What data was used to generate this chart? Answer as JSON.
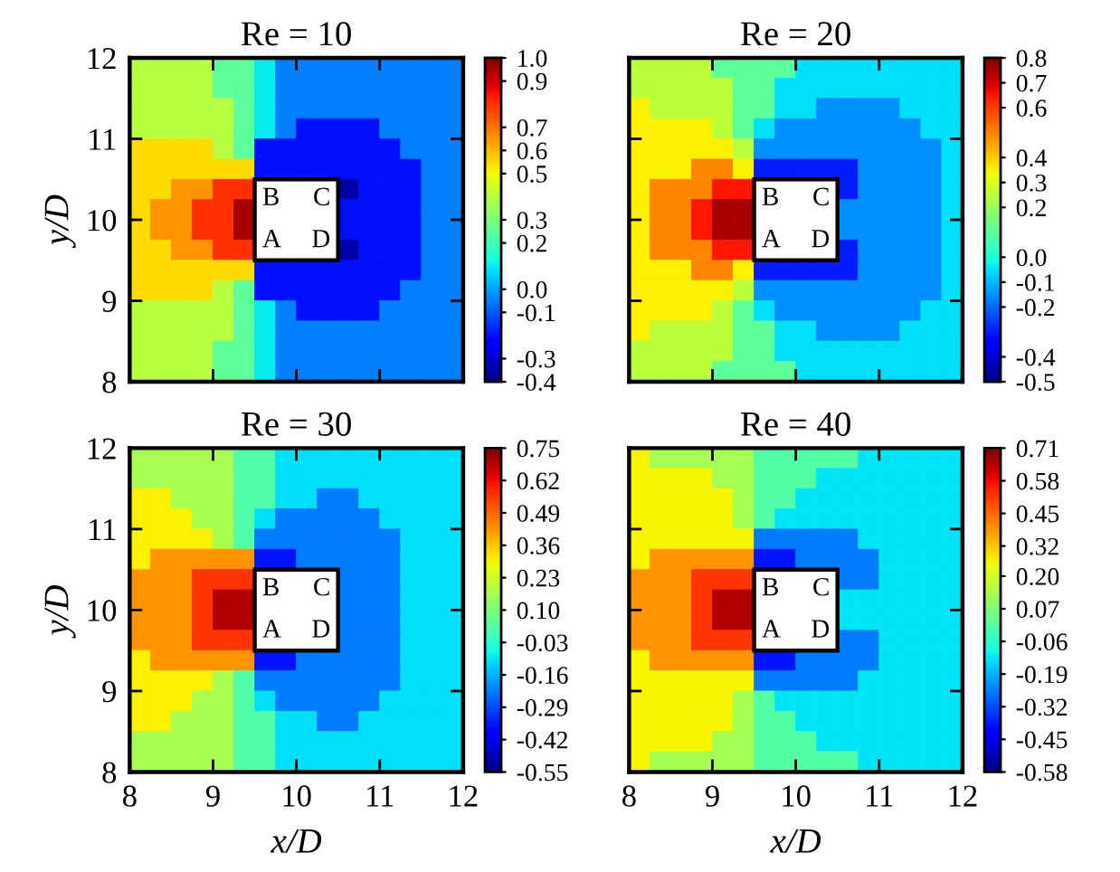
{
  "chart_data": [
    {
      "type": "heatmap",
      "title": "Re = 10",
      "ylabel": "y/D",
      "xlim": [
        8,
        12
      ],
      "ylim": [
        8,
        12
      ],
      "xticks": [
        8,
        9,
        10,
        11,
        12
      ],
      "yticks": [
        8,
        9,
        10,
        11,
        12
      ],
      "tick_labels": "y",
      "clim": [
        -0.4,
        1.0
      ],
      "cticks": [
        {
          "value": -0.4,
          "label": "-0.4"
        },
        {
          "value": -0.3,
          "label": "-0.3"
        },
        {
          "value": -0.1,
          "label": "-0.1"
        },
        {
          "value": 0,
          "label": "0.0"
        },
        {
          "value": 0.2,
          "label": "0.2"
        },
        {
          "value": 0.3,
          "label": "0.3"
        },
        {
          "value": 0.5,
          "label": "0.5"
        },
        {
          "value": 0.6,
          "label": "0.6"
        },
        {
          "value": 0.7,
          "label": "0.7"
        },
        {
          "value": 0.9,
          "label": "0.9"
        },
        {
          "value": 1.0,
          "label": "1.0"
        }
      ],
      "annotations": [
        "B",
        "C",
        "A",
        "D"
      ],
      "cells": [
        [
          0.4,
          0.4,
          0.4,
          0.4,
          0.25,
          0.25,
          0.1,
          -0.05,
          -0.05,
          -0.05,
          -0.05,
          -0.05,
          -0.05,
          -0.05,
          -0.05,
          -0.05
        ],
        [
          0.4,
          0.4,
          0.4,
          0.4,
          0.25,
          0.25,
          0.1,
          -0.05,
          -0.05,
          -0.05,
          -0.05,
          -0.05,
          -0.05,
          -0.05,
          -0.05,
          -0.05
        ],
        [
          0.4,
          0.4,
          0.4,
          0.4,
          0.4,
          0.25,
          0.1,
          -0.05,
          -0.05,
          -0.05,
          -0.05,
          -0.05,
          -0.05,
          -0.05,
          -0.05,
          -0.05
        ],
        [
          0.4,
          0.4,
          0.4,
          0.4,
          0.4,
          0.25,
          0.1,
          -0.05,
          -0.2,
          -0.2,
          -0.2,
          -0.2,
          -0.05,
          -0.05,
          -0.05,
          -0.05
        ],
        [
          0.55,
          0.55,
          0.55,
          0.55,
          0.4,
          0.25,
          -0.2,
          -0.2,
          -0.2,
          -0.2,
          -0.2,
          -0.2,
          -0.2,
          -0.05,
          -0.05,
          -0.05
        ],
        [
          0.55,
          0.55,
          0.55,
          0.55,
          0.55,
          0.55,
          -0.2,
          -0.2,
          -0.2,
          -0.2,
          -0.2,
          -0.2,
          -0.2,
          -0.2,
          -0.05,
          -0.05
        ],
        [
          0.55,
          0.55,
          0.65,
          0.65,
          0.8,
          0.8,
          null,
          null,
          null,
          null,
          -0.35,
          -0.2,
          -0.2,
          -0.2,
          -0.05,
          -0.05
        ],
        [
          0.55,
          0.65,
          0.65,
          0.8,
          0.8,
          0.95,
          null,
          null,
          null,
          null,
          -0.2,
          -0.2,
          -0.2,
          -0.2,
          -0.05,
          -0.05
        ],
        [
          0.55,
          0.65,
          0.65,
          0.8,
          0.8,
          0.95,
          null,
          null,
          null,
          null,
          -0.2,
          -0.2,
          -0.2,
          -0.2,
          -0.05,
          -0.05
        ],
        [
          0.55,
          0.55,
          0.65,
          0.65,
          0.8,
          0.8,
          null,
          null,
          null,
          null,
          -0.35,
          -0.2,
          -0.2,
          -0.2,
          -0.05,
          -0.05
        ],
        [
          0.55,
          0.55,
          0.55,
          0.55,
          0.55,
          0.55,
          -0.2,
          -0.2,
          -0.2,
          -0.2,
          -0.2,
          -0.2,
          -0.2,
          -0.2,
          -0.05,
          -0.05
        ],
        [
          0.55,
          0.55,
          0.55,
          0.55,
          0.4,
          0.25,
          -0.2,
          -0.2,
          -0.2,
          -0.2,
          -0.2,
          -0.2,
          -0.2,
          -0.05,
          -0.05,
          -0.05
        ],
        [
          0.4,
          0.4,
          0.4,
          0.4,
          0.4,
          0.25,
          0.1,
          -0.05,
          -0.2,
          -0.2,
          -0.2,
          -0.2,
          -0.05,
          -0.05,
          -0.05,
          -0.05
        ],
        [
          0.4,
          0.4,
          0.4,
          0.4,
          0.4,
          0.25,
          0.1,
          -0.05,
          -0.05,
          -0.05,
          -0.05,
          -0.05,
          -0.05,
          -0.05,
          -0.05,
          -0.05
        ],
        [
          0.4,
          0.4,
          0.4,
          0.4,
          0.25,
          0.25,
          0.1,
          -0.05,
          -0.05,
          -0.05,
          -0.05,
          -0.05,
          -0.05,
          -0.05,
          -0.05,
          -0.05
        ],
        [
          0.4,
          0.4,
          0.4,
          0.4,
          0.25,
          0.25,
          0.1,
          -0.05,
          -0.05,
          -0.05,
          -0.05,
          -0.05,
          -0.05,
          -0.05,
          -0.05,
          -0.05
        ]
      ]
    },
    {
      "type": "heatmap",
      "title": "Re = 20",
      "xlim": [
        8,
        12
      ],
      "ylim": [
        8,
        12
      ],
      "xticks": [
        8,
        9,
        10,
        11,
        12
      ],
      "yticks": [
        8,
        9,
        10,
        11,
        12
      ],
      "tick_labels": false,
      "clim": [
        -0.5,
        0.8
      ],
      "cticks": [
        {
          "value": -0.5,
          "label": "-0.5"
        },
        {
          "value": -0.4,
          "label": "-0.4"
        },
        {
          "value": -0.2,
          "label": "-0.2"
        },
        {
          "value": -0.1,
          "label": "-0.1"
        },
        {
          "value": 0,
          "label": "0.0"
        },
        {
          "value": 0.2,
          "label": "0.2"
        },
        {
          "value": 0.3,
          "label": "0.3"
        },
        {
          "value": 0.4,
          "label": "0.4"
        },
        {
          "value": 0.6,
          "label": "0.6"
        },
        {
          "value": 0.7,
          "label": "0.7"
        },
        {
          "value": 0.8,
          "label": "0.8"
        }
      ],
      "annotations": [
        "B",
        "C",
        "A",
        "D"
      ],
      "cells": [
        [
          0.25,
          0.25,
          0.25,
          0.25,
          0.1,
          0.1,
          0.1,
          0.1,
          -0.05,
          -0.05,
          -0.05,
          -0.05,
          -0.05,
          -0.05,
          -0.05,
          -0.05
        ],
        [
          0.25,
          0.25,
          0.25,
          0.25,
          0.25,
          0.1,
          0.1,
          -0.05,
          -0.05,
          -0.05,
          -0.05,
          -0.05,
          -0.05,
          -0.05,
          -0.05,
          -0.05
        ],
        [
          0.35,
          0.25,
          0.25,
          0.25,
          0.25,
          0.1,
          0.1,
          -0.05,
          -0.05,
          -0.15,
          -0.15,
          -0.15,
          -0.15,
          -0.05,
          -0.05,
          -0.05
        ],
        [
          0.35,
          0.35,
          0.35,
          0.35,
          0.25,
          0.1,
          -0.05,
          -0.15,
          -0.15,
          -0.15,
          -0.15,
          -0.15,
          -0.15,
          -0.15,
          -0.05,
          -0.05
        ],
        [
          0.35,
          0.35,
          0.35,
          0.35,
          0.35,
          0.25,
          -0.15,
          -0.15,
          -0.15,
          -0.15,
          -0.15,
          -0.15,
          -0.15,
          -0.15,
          -0.15,
          -0.05
        ],
        [
          0.35,
          0.35,
          0.35,
          0.5,
          0.5,
          0.35,
          -0.3,
          -0.3,
          -0.3,
          -0.3,
          -0.3,
          -0.15,
          -0.15,
          -0.15,
          -0.15,
          -0.05
        ],
        [
          0.35,
          0.5,
          0.5,
          0.5,
          0.65,
          0.65,
          null,
          null,
          null,
          null,
          -0.3,
          -0.15,
          -0.15,
          -0.15,
          -0.15,
          -0.05
        ],
        [
          0.35,
          0.5,
          0.5,
          0.65,
          0.75,
          0.75,
          null,
          null,
          null,
          null,
          -0.15,
          -0.15,
          -0.15,
          -0.15,
          -0.15,
          -0.05
        ],
        [
          0.35,
          0.5,
          0.5,
          0.65,
          0.75,
          0.75,
          null,
          null,
          null,
          null,
          -0.15,
          -0.15,
          -0.15,
          -0.15,
          -0.15,
          -0.05
        ],
        [
          0.35,
          0.5,
          0.5,
          0.5,
          0.65,
          0.65,
          null,
          null,
          null,
          null,
          -0.3,
          -0.15,
          -0.15,
          -0.15,
          -0.15,
          -0.05
        ],
        [
          0.35,
          0.35,
          0.35,
          0.5,
          0.5,
          0.35,
          -0.3,
          -0.3,
          -0.3,
          -0.3,
          -0.3,
          -0.15,
          -0.15,
          -0.15,
          -0.15,
          -0.05
        ],
        [
          0.35,
          0.35,
          0.35,
          0.35,
          0.35,
          0.25,
          -0.15,
          -0.15,
          -0.15,
          -0.15,
          -0.15,
          -0.15,
          -0.15,
          -0.15,
          -0.15,
          -0.05
        ],
        [
          0.35,
          0.35,
          0.35,
          0.35,
          0.25,
          0.1,
          -0.05,
          -0.15,
          -0.15,
          -0.15,
          -0.15,
          -0.15,
          -0.15,
          -0.15,
          -0.05,
          -0.05
        ],
        [
          0.35,
          0.25,
          0.25,
          0.25,
          0.25,
          0.1,
          0.1,
          -0.05,
          -0.05,
          -0.15,
          -0.15,
          -0.15,
          -0.15,
          -0.05,
          -0.05,
          -0.05
        ],
        [
          0.25,
          0.25,
          0.25,
          0.25,
          0.25,
          0.1,
          0.1,
          -0.05,
          -0.05,
          -0.05,
          -0.05,
          -0.05,
          -0.05,
          -0.05,
          -0.05,
          -0.05
        ],
        [
          0.25,
          0.25,
          0.25,
          0.25,
          0.1,
          0.1,
          0.1,
          0.1,
          -0.05,
          -0.05,
          -0.05,
          -0.05,
          -0.05,
          -0.05,
          -0.05,
          -0.05
        ]
      ]
    },
    {
      "type": "heatmap",
      "title": "Re = 30",
      "xlabel": "x/D",
      "ylabel": "y/D",
      "xlim": [
        8,
        12
      ],
      "ylim": [
        8,
        12
      ],
      "xticks": [
        8,
        9,
        10,
        11,
        12
      ],
      "yticks": [
        8,
        9,
        10,
        11,
        12
      ],
      "clim": [
        -0.55,
        0.75
      ],
      "cticks": [
        {
          "value": -0.55,
          "label": "-0.55"
        },
        {
          "value": -0.42,
          "label": "-0.42"
        },
        {
          "value": -0.29,
          "label": "-0.29"
        },
        {
          "value": -0.16,
          "label": "-0.16"
        },
        {
          "value": -0.03,
          "label": "-0.03"
        },
        {
          "value": 0.1,
          "label": "0.10"
        },
        {
          "value": 0.23,
          "label": "0.23"
        },
        {
          "value": 0.36,
          "label": "0.36"
        },
        {
          "value": 0.49,
          "label": "0.49"
        },
        {
          "value": 0.62,
          "label": "0.62"
        },
        {
          "value": 0.75,
          "label": "0.75"
        }
      ],
      "annotations": [
        "B",
        "C",
        "A",
        "D"
      ],
      "cells": [
        [
          0.17,
          0.17,
          0.17,
          0.17,
          0.17,
          0.03,
          0.03,
          -0.1,
          -0.1,
          -0.1,
          -0.1,
          -0.1,
          -0.1,
          -0.1,
          -0.1,
          -0.1
        ],
        [
          0.17,
          0.17,
          0.17,
          0.17,
          0.17,
          0.03,
          0.03,
          -0.1,
          -0.1,
          -0.1,
          -0.1,
          -0.1,
          -0.1,
          -0.1,
          -0.1,
          -0.1
        ],
        [
          0.3,
          0.3,
          0.17,
          0.17,
          0.17,
          0.03,
          0.03,
          -0.1,
          -0.1,
          -0.23,
          -0.23,
          -0.1,
          -0.1,
          -0.1,
          -0.1,
          -0.1
        ],
        [
          0.3,
          0.3,
          0.3,
          0.17,
          0.17,
          0.03,
          -0.1,
          -0.23,
          -0.23,
          -0.23,
          -0.23,
          -0.23,
          -0.1,
          -0.1,
          -0.1,
          -0.1
        ],
        [
          0.3,
          0.3,
          0.3,
          0.3,
          0.17,
          0.03,
          -0.23,
          -0.23,
          -0.23,
          -0.23,
          -0.23,
          -0.23,
          -0.23,
          -0.1,
          -0.1,
          -0.1
        ],
        [
          0.3,
          0.43,
          0.43,
          0.43,
          0.43,
          0.43,
          -0.36,
          -0.36,
          -0.23,
          -0.23,
          -0.23,
          -0.23,
          -0.23,
          -0.1,
          -0.1,
          -0.1
        ],
        [
          0.43,
          0.43,
          0.43,
          0.56,
          0.56,
          0.56,
          null,
          null,
          null,
          null,
          -0.23,
          -0.23,
          -0.23,
          -0.1,
          -0.1,
          -0.1
        ],
        [
          0.43,
          0.43,
          0.43,
          0.56,
          0.69,
          0.69,
          null,
          null,
          null,
          null,
          -0.23,
          -0.23,
          -0.23,
          -0.1,
          -0.1,
          -0.1
        ],
        [
          0.43,
          0.43,
          0.43,
          0.56,
          0.69,
          0.69,
          null,
          null,
          null,
          null,
          -0.23,
          -0.23,
          -0.23,
          -0.1,
          -0.1,
          -0.1
        ],
        [
          0.43,
          0.43,
          0.43,
          0.56,
          0.56,
          0.56,
          null,
          null,
          null,
          null,
          -0.23,
          -0.23,
          -0.23,
          -0.1,
          -0.1,
          -0.1
        ],
        [
          0.3,
          0.43,
          0.43,
          0.43,
          0.43,
          0.43,
          -0.36,
          -0.36,
          -0.23,
          -0.23,
          -0.23,
          -0.23,
          -0.23,
          -0.1,
          -0.1,
          -0.1
        ],
        [
          0.3,
          0.3,
          0.3,
          0.3,
          0.17,
          0.03,
          -0.23,
          -0.23,
          -0.23,
          -0.23,
          -0.23,
          -0.23,
          -0.23,
          -0.1,
          -0.1,
          -0.1
        ],
        [
          0.3,
          0.3,
          0.3,
          0.17,
          0.17,
          0.03,
          -0.1,
          -0.23,
          -0.23,
          -0.23,
          -0.23,
          -0.23,
          -0.1,
          -0.1,
          -0.1,
          -0.1
        ],
        [
          0.3,
          0.3,
          0.17,
          0.17,
          0.17,
          0.03,
          0.03,
          -0.1,
          -0.1,
          -0.23,
          -0.23,
          -0.1,
          -0.1,
          -0.1,
          -0.1,
          -0.1
        ],
        [
          0.17,
          0.17,
          0.17,
          0.17,
          0.17,
          0.03,
          0.03,
          -0.1,
          -0.1,
          -0.1,
          -0.1,
          -0.1,
          -0.1,
          -0.1,
          -0.1,
          -0.1
        ],
        [
          0.17,
          0.17,
          0.17,
          0.17,
          0.17,
          0.03,
          0.03,
          -0.1,
          -0.1,
          -0.1,
          -0.1,
          -0.1,
          -0.1,
          -0.1,
          -0.1,
          -0.1
        ]
      ]
    },
    {
      "type": "heatmap",
      "title": "Re = 40",
      "xlabel": "x/D",
      "xlim": [
        8,
        12
      ],
      "ylim": [
        8,
        12
      ],
      "xticks": [
        8,
        9,
        10,
        11,
        12
      ],
      "yticks": [
        8,
        9,
        10,
        11,
        12
      ],
      "tick_labels": "x",
      "clim": [
        -0.58,
        0.71
      ],
      "cticks": [
        {
          "value": -0.58,
          "label": "-0.58"
        },
        {
          "value": -0.45,
          "label": "-0.45"
        },
        {
          "value": -0.32,
          "label": "-0.32"
        },
        {
          "value": -0.19,
          "label": "-0.19"
        },
        {
          "value": -0.06,
          "label": "-0.06"
        },
        {
          "value": 0.07,
          "label": "0.07"
        },
        {
          "value": 0.2,
          "label": "0.20"
        },
        {
          "value": 0.32,
          "label": "0.32"
        },
        {
          "value": 0.45,
          "label": "0.45"
        },
        {
          "value": 0.58,
          "label": "0.58"
        },
        {
          "value": 0.71,
          "label": "0.71"
        }
      ],
      "annotations": [
        "B",
        "C",
        "A",
        "D"
      ],
      "cells": [
        [
          0.26,
          0.13,
          0.13,
          0.13,
          0.13,
          0.13,
          0,
          0,
          0,
          0,
          0,
          -0.13,
          -0.13,
          -0.13,
          -0.13,
          -0.13
        ],
        [
          0.26,
          0.26,
          0.26,
          0.26,
          0.13,
          0.13,
          0,
          0,
          0,
          -0.13,
          -0.13,
          -0.13,
          -0.13,
          -0.13,
          -0.13,
          -0.13
        ],
        [
          0.26,
          0.26,
          0.26,
          0.26,
          0.26,
          0.13,
          0,
          0,
          -0.13,
          -0.13,
          -0.13,
          -0.13,
          -0.13,
          -0.13,
          -0.13,
          -0.13
        ],
        [
          0.26,
          0.26,
          0.26,
          0.26,
          0.26,
          0.13,
          0,
          -0.13,
          -0.13,
          -0.13,
          -0.13,
          -0.13,
          -0.13,
          -0.13,
          -0.13,
          -0.13
        ],
        [
          0.26,
          0.26,
          0.26,
          0.26,
          0.26,
          0.26,
          -0.26,
          -0.26,
          -0.26,
          -0.26,
          -0.26,
          -0.13,
          -0.13,
          -0.13,
          -0.13,
          -0.13
        ],
        [
          0.26,
          0.39,
          0.39,
          0.39,
          0.39,
          0.39,
          -0.39,
          -0.39,
          -0.26,
          -0.26,
          -0.26,
          -0.26,
          -0.13,
          -0.13,
          -0.13,
          -0.13
        ],
        [
          0.39,
          0.39,
          0.39,
          0.52,
          0.52,
          0.52,
          null,
          null,
          null,
          null,
          -0.26,
          -0.26,
          -0.13,
          -0.13,
          -0.13,
          -0.13
        ],
        [
          0.39,
          0.39,
          0.39,
          0.52,
          0.65,
          0.65,
          null,
          null,
          null,
          null,
          -0.13,
          -0.13,
          -0.13,
          -0.13,
          -0.13,
          -0.13
        ],
        [
          0.39,
          0.39,
          0.39,
          0.52,
          0.65,
          0.65,
          null,
          null,
          null,
          null,
          -0.13,
          -0.13,
          -0.13,
          -0.13,
          -0.13,
          -0.13
        ],
        [
          0.39,
          0.39,
          0.39,
          0.52,
          0.52,
          0.52,
          null,
          null,
          null,
          null,
          -0.26,
          -0.26,
          -0.13,
          -0.13,
          -0.13,
          -0.13
        ],
        [
          0.26,
          0.39,
          0.39,
          0.39,
          0.39,
          0.39,
          -0.39,
          -0.39,
          -0.26,
          -0.26,
          -0.26,
          -0.26,
          -0.13,
          -0.13,
          -0.13,
          -0.13
        ],
        [
          0.26,
          0.26,
          0.26,
          0.26,
          0.26,
          0.26,
          -0.26,
          -0.26,
          -0.26,
          -0.26,
          -0.26,
          -0.13,
          -0.13,
          -0.13,
          -0.13,
          -0.13
        ],
        [
          0.26,
          0.26,
          0.26,
          0.26,
          0.26,
          0.13,
          0,
          -0.13,
          -0.13,
          -0.13,
          -0.13,
          -0.13,
          -0.13,
          -0.13,
          -0.13,
          -0.13
        ],
        [
          0.26,
          0.26,
          0.26,
          0.26,
          0.26,
          0.13,
          0,
          0,
          -0.13,
          -0.13,
          -0.13,
          -0.13,
          -0.13,
          -0.13,
          -0.13,
          -0.13
        ],
        [
          0.26,
          0.26,
          0.26,
          0.26,
          0.13,
          0.13,
          0,
          0,
          0,
          -0.13,
          -0.13,
          -0.13,
          -0.13,
          -0.13,
          -0.13,
          -0.13
        ],
        [
          0.26,
          0.13,
          0.13,
          0.13,
          0.13,
          0.13,
          0,
          0,
          0,
          0,
          0,
          -0.13,
          -0.13,
          -0.13,
          -0.13,
          -0.13
        ]
      ]
    }
  ]
}
